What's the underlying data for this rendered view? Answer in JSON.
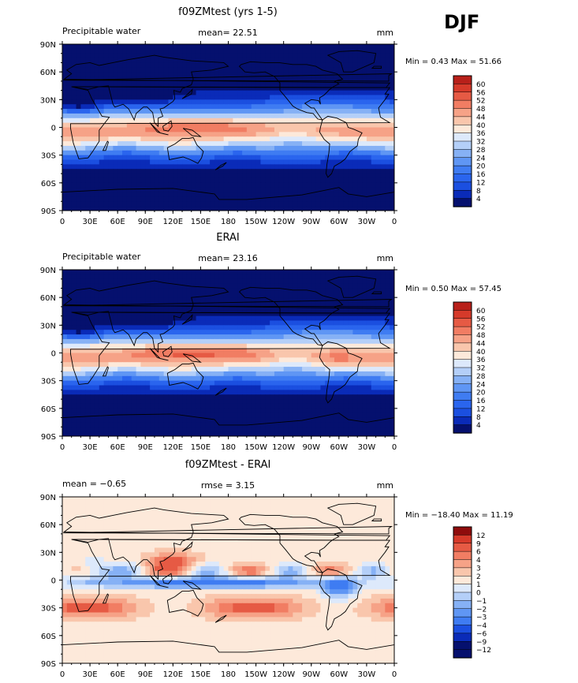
{
  "season": "DJF",
  "colors": {
    "field_ramp": [
      "#05106e",
      "#0a2bb8",
      "#1b4fe0",
      "#2a65ee",
      "#3f7cf2",
      "#5f96f4",
      "#86b1f5",
      "#b4cff8",
      "#dde9fb",
      "#fde9da",
      "#f9c6ac",
      "#f6a287",
      "#f17d63",
      "#e65a44",
      "#d63a2a",
      "#b8201a",
      "#8f0c0c"
    ],
    "diff_ramp": [
      "#05106e",
      "#0a2bb8",
      "#1b4fe0",
      "#3f7cf2",
      "#5f96f4",
      "#86b1f5",
      "#b4cff8",
      "#dde9fb",
      "#fde9da",
      "#f9c6ac",
      "#f6a287",
      "#f17d63",
      "#e65a44",
      "#d63a2a",
      "#8f0c0c"
    ]
  },
  "chart_data": [
    {
      "type": "heatmap",
      "title": "f09ZMtest (yrs 1-5)",
      "left_label": "Precipitable water",
      "center_stat": "mean=  22.51",
      "units": "mm",
      "min_max": "Min =   0.43 Max =  51.66",
      "x_ticks": [
        "0",
        "30E",
        "60E",
        "90E",
        "120E",
        "150E",
        "180",
        "150W",
        "120W",
        "90W",
        "60W",
        "30W",
        "0"
      ],
      "y_ticks": [
        "90N",
        "60N",
        "30N",
        "0",
        "30S",
        "60S",
        "90S"
      ],
      "colorbar_levels": [
        "60",
        "56",
        "52",
        "48",
        "44",
        "40",
        "36",
        "32",
        "28",
        "24",
        "20",
        "16",
        "12",
        "8",
        "4"
      ],
      "mean": 22.51,
      "min": 0.43,
      "max": 51.66
    },
    {
      "type": "heatmap",
      "title": "ERAI",
      "left_label": "Precipitable water",
      "center_stat": "mean=  23.16",
      "units": "mm",
      "min_max": "Min =   0.50 Max =  57.45",
      "x_ticks": [
        "0",
        "30E",
        "60E",
        "90E",
        "120E",
        "150E",
        "180",
        "150W",
        "120W",
        "90W",
        "60W",
        "30W",
        "0"
      ],
      "y_ticks": [
        "90N",
        "60N",
        "30N",
        "0",
        "30S",
        "60S",
        "90S"
      ],
      "colorbar_levels": [
        "60",
        "56",
        "52",
        "48",
        "44",
        "40",
        "36",
        "32",
        "28",
        "24",
        "20",
        "16",
        "12",
        "8",
        "4"
      ],
      "mean": 23.16,
      "min": 0.5,
      "max": 57.45
    },
    {
      "type": "heatmap",
      "title": "f09ZMtest - ERAI",
      "left_label": "mean =   −0.65",
      "center_stat": "rmse =   3.15",
      "units": "mm",
      "min_max": "Min = −18.40 Max =  11.19",
      "x_ticks": [
        "0",
        "30E",
        "60E",
        "90E",
        "120E",
        "150E",
        "180",
        "150W",
        "120W",
        "90W",
        "60W",
        "30W",
        "0"
      ],
      "y_ticks": [
        "90N",
        "60N",
        "30N",
        "0",
        "30S",
        "60S",
        "90S"
      ],
      "colorbar_levels": [
        "12",
        "9",
        "6",
        "4",
        "3",
        "2",
        "1",
        "0",
        "−1",
        "−2",
        "−3",
        "−4",
        "−6",
        "−9",
        "−12"
      ],
      "mean": -0.65,
      "rmse": 3.15,
      "min": -18.4,
      "max": 11.19
    }
  ]
}
